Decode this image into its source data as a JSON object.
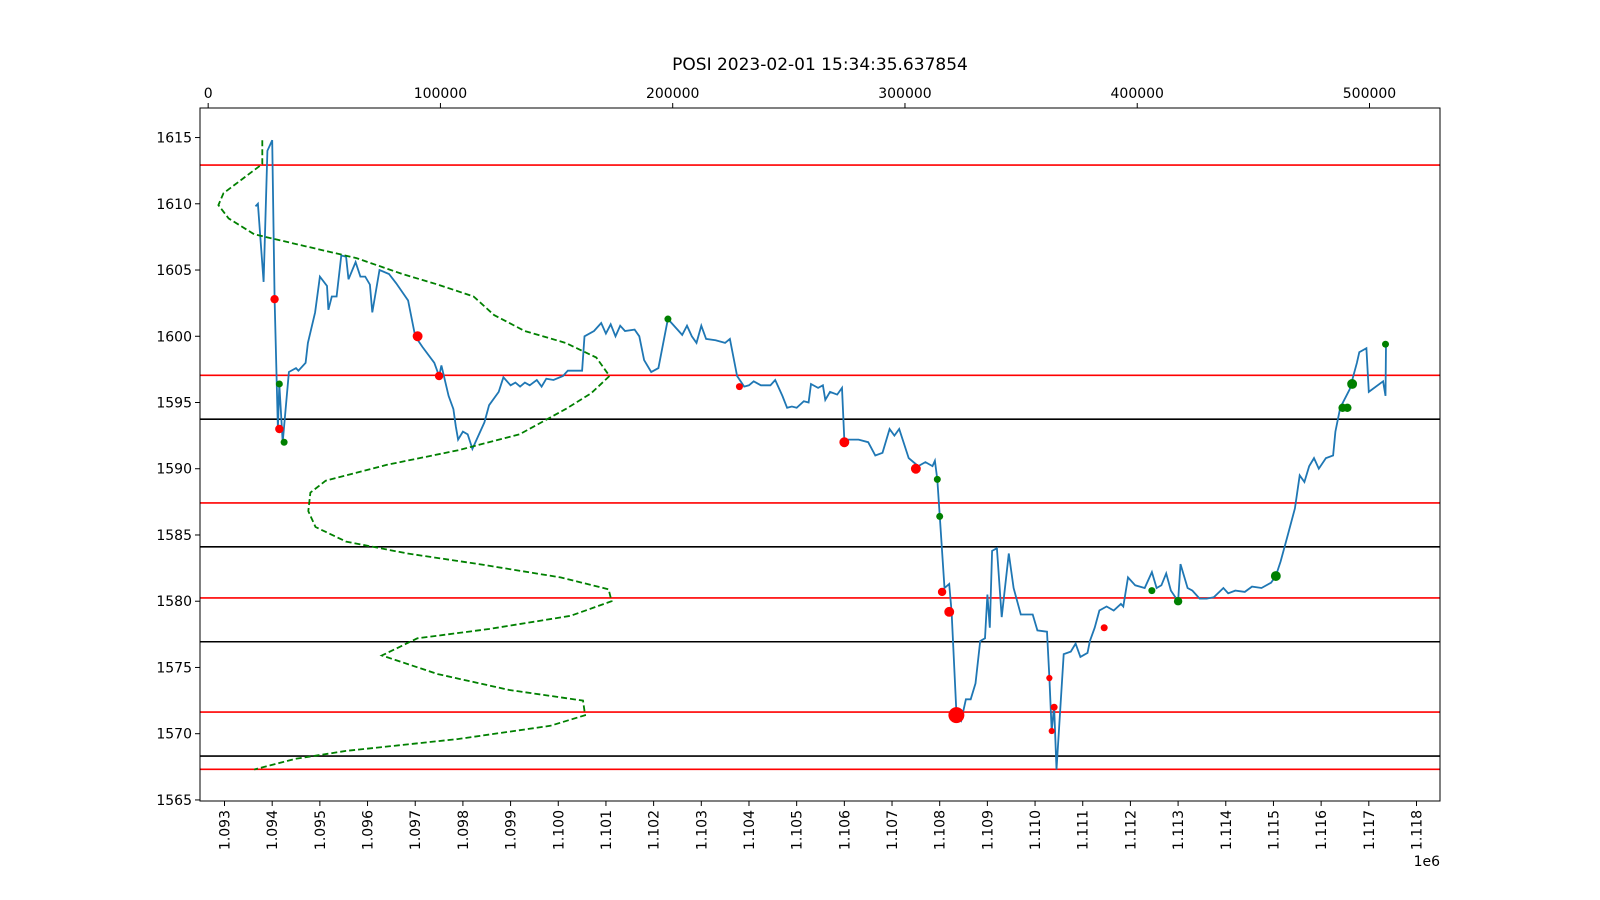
{
  "chart_data": {
    "type": "line",
    "title": "POSI 2023-02-01 15:34:35.637854",
    "xlim": [
      1092486,
      1118493
    ],
    "xticks": [
      {
        "value": 1093000,
        "label": "1.093"
      },
      {
        "value": 1094000,
        "label": "1.094"
      },
      {
        "value": 1095000,
        "label": "1.095"
      },
      {
        "value": 1096000,
        "label": "1.096"
      },
      {
        "value": 1097000,
        "label": "1.097"
      },
      {
        "value": 1098000,
        "label": "1.098"
      },
      {
        "value": 1099000,
        "label": "1.099"
      },
      {
        "value": 1100000,
        "label": "1.100"
      },
      {
        "value": 1101000,
        "label": "1.101"
      },
      {
        "value": 1102000,
        "label": "1.102"
      },
      {
        "value": 1103000,
        "label": "1.103"
      },
      {
        "value": 1104000,
        "label": "1.104"
      },
      {
        "value": 1105000,
        "label": "1.105"
      },
      {
        "value": 1106000,
        "label": "1.106"
      },
      {
        "value": 1107000,
        "label": "1.107"
      },
      {
        "value": 1108000,
        "label": "1.108"
      },
      {
        "value": 1109000,
        "label": "1.109"
      },
      {
        "value": 1110000,
        "label": "1.110"
      },
      {
        "value": 1111000,
        "label": "1.111"
      },
      {
        "value": 1112000,
        "label": "1.112"
      },
      {
        "value": 1113000,
        "label": "1.113"
      },
      {
        "value": 1114000,
        "label": "1.114"
      },
      {
        "value": 1115000,
        "label": "1.115"
      },
      {
        "value": 1116000,
        "label": "1.116"
      },
      {
        "value": 1117000,
        "label": "1.117"
      },
      {
        "value": 1118000,
        "label": "1.118"
      }
    ],
    "x_offset_label": "1e6",
    "x2lim": [
      -3518,
      530356
    ],
    "x2ticks": [
      0,
      100000,
      200000,
      300000,
      400000,
      500000
    ],
    "ylim": [
      1564.92,
      1617.23
    ],
    "yticks": [
      1565,
      1570,
      1575,
      1580,
      1585,
      1590,
      1595,
      1600,
      1605,
      1610,
      1615
    ],
    "hlines": [
      {
        "value": 1612.92,
        "color": "red"
      },
      {
        "value": 1597.05,
        "color": "red"
      },
      {
        "value": 1587.42,
        "color": "red"
      },
      {
        "value": 1580.25,
        "color": "red"
      },
      {
        "value": 1571.63,
        "color": "red"
      },
      {
        "value": 1567.31,
        "color": "red"
      },
      {
        "value": 1593.74,
        "color": "black"
      },
      {
        "value": 1584.11,
        "color": "black"
      },
      {
        "value": 1576.94,
        "color": "black"
      },
      {
        "value": 1568.31,
        "color": "black"
      }
    ],
    "series": [
      {
        "type": "line",
        "color": "#1f77b4",
        "x": [
          1093650,
          1093700,
          1093820,
          1093900,
          1094000,
          1094050,
          1094120,
          1094150,
          1094220,
          1094350,
          1094500,
          1094550,
          1094700,
          1094750,
          1094900,
          1095000,
          1095150,
          1095180,
          1095250,
          1095350,
          1095450,
          1095550,
          1095600,
          1095750,
          1095850,
          1095950,
          1096050,
          1096100,
          1096250,
          1096450,
          1096600,
          1096850,
          1097000,
          1097150,
          1097400,
          1097500,
          1097550,
          1097700,
          1097800,
          1097850,
          1097900,
          1098000,
          1098100,
          1098200,
          1098450,
          1098550,
          1098750,
          1098850,
          1099000,
          1099100,
          1099200,
          1099300,
          1099400,
          1099550,
          1099650,
          1099750,
          1099900,
          1100100,
          1100200,
          1100500,
          1100550,
          1100750,
          1100900,
          1101000,
          1101100,
          1101200,
          1101300,
          1101400,
          1101600,
          1101700,
          1101800,
          1101950,
          1102100,
          1102300,
          1102500,
          1102600,
          1102700,
          1102800,
          1102900,
          1103000,
          1103100,
          1103300,
          1103500,
          1103600,
          1103750,
          1103900,
          1104000,
          1104100,
          1104250,
          1104450,
          1104550,
          1104700,
          1104800,
          1104900,
          1105000,
          1105150,
          1105250,
          1105300,
          1105450,
          1105550,
          1105600,
          1105700,
          1105850,
          1105950,
          1106000,
          1106100,
          1106300,
          1106500,
          1106650,
          1106800,
          1106950,
          1107050,
          1107150,
          1107350,
          1107550,
          1107700,
          1107850,
          1107900,
          1107950,
          1108000,
          1108100,
          1108200,
          1108250,
          1108350,
          1108450,
          1108550,
          1108650,
          1108750,
          1108850,
          1108950,
          1109000,
          1109050,
          1109100,
          1109200,
          1109300,
          1109450,
          1109550,
          1109700,
          1109950,
          1110050,
          1110250,
          1110300,
          1110350,
          1110400,
          1110450,
          1110600,
          1110750,
          1110850,
          1110950,
          1111100,
          1111150,
          1111250,
          1111350,
          1111500,
          1111650,
          1111800,
          1111850,
          1111950,
          1112100,
          1112300,
          1112450,
          1112550,
          1112650,
          1112750,
          1112850,
          1113000,
          1113050,
          1113200,
          1113300,
          1113450,
          1113600,
          1113750,
          1113950,
          1114050,
          1114200,
          1114400,
          1114550,
          1114750,
          1114950,
          1115050,
          1115150,
          1115300,
          1115450,
          1115550,
          1115650,
          1115750,
          1115850,
          1115950,
          1116100,
          1116250,
          1116300,
          1116400,
          1116600,
          1116750,
          1116800,
          1116950,
          1117000,
          1117300,
          1117350,
          1117360
        ],
        "values": [
          1609.8,
          1610.0,
          1604.1,
          1614.0,
          1614.8,
          1602.8,
          1593.0,
          1596.4,
          1592.0,
          1597.3,
          1597.6,
          1597.4,
          1598.0,
          1599.5,
          1601.8,
          1604.5,
          1603.8,
          1602.0,
          1603.0,
          1603.0,
          1606.1,
          1606.0,
          1604.3,
          1605.6,
          1604.5,
          1604.5,
          1603.9,
          1601.8,
          1605.0,
          1604.7,
          1604.0,
          1602.7,
          1600.0,
          1599.2,
          1598.0,
          1597.0,
          1597.8,
          1595.5,
          1594.5,
          1593.2,
          1592.2,
          1592.8,
          1592.6,
          1591.5,
          1593.5,
          1594.8,
          1595.8,
          1596.9,
          1596.3,
          1596.5,
          1596.2,
          1596.5,
          1596.3,
          1596.7,
          1596.2,
          1596.8,
          1596.7,
          1597.0,
          1597.4,
          1597.4,
          1600.0,
          1600.4,
          1601.0,
          1600.2,
          1600.9,
          1600.0,
          1600.8,
          1600.4,
          1600.5,
          1600.0,
          1598.2,
          1597.3,
          1597.6,
          1601.3,
          1600.5,
          1600.1,
          1600.8,
          1600.0,
          1599.5,
          1600.8,
          1599.8,
          1599.7,
          1599.5,
          1599.8,
          1597.0,
          1596.2,
          1596.3,
          1596.6,
          1596.3,
          1596.3,
          1596.7,
          1595.5,
          1594.6,
          1594.7,
          1594.6,
          1595.1,
          1595.0,
          1596.4,
          1596.1,
          1596.3,
          1595.2,
          1595.8,
          1595.6,
          1596.1,
          1592.2,
          1592.2,
          1592.2,
          1592.0,
          1591.0,
          1591.2,
          1593.0,
          1592.5,
          1593.0,
          1590.8,
          1590.2,
          1590.5,
          1590.2,
          1590.6,
          1589.2,
          1586.5,
          1581.0,
          1581.3,
          1579.2,
          1571.6,
          1571.0,
          1572.6,
          1572.6,
          1573.8,
          1577.0,
          1577.2,
          1580.5,
          1578.0,
          1583.8,
          1584.0,
          1578.8,
          1583.6,
          1581.0,
          1579.0,
          1579.0,
          1577.8,
          1577.7,
          1574.2,
          1570.2,
          1572.1,
          1567.3,
          1576.0,
          1576.2,
          1576.8,
          1575.8,
          1576.1,
          1577.0,
          1578.0,
          1579.3,
          1579.6,
          1579.3,
          1579.8,
          1579.6,
          1581.8,
          1581.2,
          1581.0,
          1582.2,
          1581.0,
          1581.2,
          1582.1,
          1580.8,
          1580.0,
          1582.8,
          1581.0,
          1580.8,
          1580.2,
          1580.2,
          1580.3,
          1581.0,
          1580.6,
          1580.8,
          1580.7,
          1581.1,
          1581.0,
          1581.4,
          1581.9,
          1583.0,
          1585.0,
          1587.0,
          1589.5,
          1589.0,
          1590.2,
          1590.8,
          1590.0,
          1590.8,
          1591.0,
          1592.8,
          1594.6,
          1596.0,
          1598.0,
          1598.8,
          1599.1,
          1595.8,
          1596.6,
          1595.5,
          1599.4
        ]
      },
      {
        "type": "scatter",
        "color": "red",
        "x": [
          1094050,
          1094150,
          1097050,
          1097500,
          1103800,
          1106000,
          1107500,
          1108050,
          1108200,
          1108350,
          1110300,
          1110350,
          1110400,
          1111450
        ],
        "values": [
          1602.8,
          1593.0,
          1600.0,
          1597.0,
          1596.2,
          1592.0,
          1590.0,
          1580.7,
          1579.2,
          1571.4,
          1574.2,
          1570.2,
          1572.0,
          1578.0
        ],
        "sizes": [
          36,
          36,
          50,
          36,
          25,
          50,
          50,
          36,
          50,
          130,
          20,
          20,
          25,
          25
        ]
      },
      {
        "type": "scatter",
        "color": "green",
        "x": [
          1094150,
          1094250,
          1102300,
          1107950,
          1108000,
          1112450,
          1113000,
          1115050,
          1116450,
          1116550,
          1116650,
          1117350
        ],
        "values": [
          1596.4,
          1592.0,
          1601.3,
          1589.2,
          1586.4,
          1580.8,
          1580.0,
          1581.9,
          1594.6,
          1594.6,
          1596.4,
          1599.4
        ],
        "sizes": [
          25,
          25,
          25,
          25,
          25,
          25,
          36,
          50,
          36,
          36,
          50,
          25
        ]
      },
      {
        "type": "line",
        "axis": "x2",
        "color": "green",
        "linestyle": "dashed",
        "x": [
          23300,
          23300,
          6600,
          4400,
          8800,
          19800,
          41800,
          63800,
          83600,
          98900,
          114300,
          123100,
          136300,
          153900,
          167100,
          172800,
          164900,
          153900,
          134100,
          107700,
          77000,
          50600,
          44000,
          43100,
          46200,
          59400,
          85800,
          116500,
          151700,
          172400,
          173700,
          156100,
          120900,
          90100,
          74800,
          98900,
          129700,
          161400,
          162300,
          147300,
          107700,
          59400,
          37400,
          19800
        ],
        "values": [
          1614.8,
          1613.0,
          1610.8,
          1609.9,
          1608.9,
          1607.7,
          1606.8,
          1605.9,
          1604.7,
          1603.9,
          1603.0,
          1601.6,
          1600.4,
          1599.5,
          1598.4,
          1597.0,
          1595.7,
          1594.5,
          1592.6,
          1591.4,
          1590.3,
          1589.1,
          1588.2,
          1586.8,
          1585.6,
          1584.5,
          1583.6,
          1582.8,
          1581.8,
          1580.9,
          1580.0,
          1578.9,
          1577.9,
          1577.2,
          1575.9,
          1574.5,
          1573.3,
          1572.5,
          1571.4,
          1570.6,
          1569.6,
          1568.7,
          1568.1,
          1567.3
        ]
      }
    ]
  }
}
